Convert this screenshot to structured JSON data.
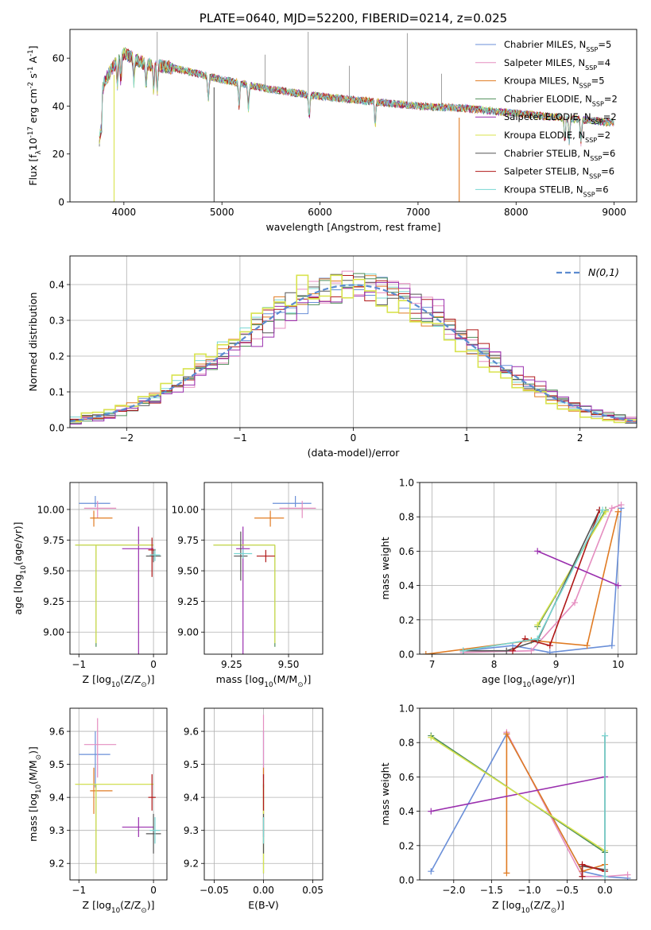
{
  "colors": [
    "#6a8fd8",
    "#e58ec0",
    "#e07b23",
    "#4f8f5a",
    "#9a2fae",
    "#d8e34e",
    "#555555",
    "#b01818",
    "#78d6d2"
  ],
  "chart_data": [
    {
      "type": "line",
      "id": "spectrum",
      "title": "PLATE=0640, MJD=52200, FIBERID=0214, z=0.025",
      "xlabel": "wavelength [Angstrom, rest frame]",
      "ylabel": "Flux [f$_\\lambda$10$^{-17}$ erg cm$^{-2}$ s$^{-1}$ A$^{-1}$]",
      "xlim": [
        3450,
        9230
      ],
      "ylim": [
        0,
        72
      ],
      "xticks": [
        4000,
        5000,
        6000,
        7000,
        8000,
        9000
      ],
      "yticks": [
        0,
        20,
        40,
        60
      ],
      "grid": false,
      "legend_position": "top-right",
      "series": [
        {
          "name": "Chabrier MILES, N$_{SSP}$=5"
        },
        {
          "name": "Salpeter MILES, N$_{SSP}$=4"
        },
        {
          "name": "Kroupa MILES, N$_{SSP}$=5"
        },
        {
          "name": "Chabrier ELODIE, N$_{SSP}$=2"
        },
        {
          "name": "Salpeter ELODIE, N$_{SSP}$=2"
        },
        {
          "name": "Kroupa ELODIE, N$_{SSP}$=2"
        },
        {
          "name": "Chabrier STELIB, N$_{SSP}$=6"
        },
        {
          "name": "Salpeter STELIB, N$_{SSP}$=6"
        },
        {
          "name": "Kroupa STELIB, N$_{SSP}$=6"
        }
      ],
      "continuum": {
        "x": [
          3750,
          3800,
          3900,
          4000,
          4100,
          4200,
          4300,
          4500,
          5000,
          5500,
          6000,
          6500,
          7000,
          7500,
          8000,
          8500,
          9000
        ],
        "y": [
          40,
          50,
          57,
          62,
          60,
          58,
          57,
          56,
          51,
          47,
          44,
          42,
          40,
          39,
          37,
          35,
          33
        ]
      },
      "absorption_lines": [
        3934,
        3969,
        4102,
        4227,
        4304,
        4341,
        4861,
        5175,
        5270,
        5890,
        6563,
        8498,
        8542,
        8662
      ],
      "drop_edges": {
        "Kroupa ELODIE": 3900,
        "Chabrier STELIB": 4920,
        "Kroupa MILES": 7420
      },
      "spikes": [
        4340,
        5440,
        5880,
        6300,
        6890,
        7240
      ]
    },
    {
      "type": "line",
      "id": "residuals",
      "title": "",
      "xlabel": "(data-model)/error",
      "ylabel": "Normed distribution",
      "xlim": [
        -2.5,
        2.5
      ],
      "ylim": [
        0,
        0.48
      ],
      "xticks": [
        -2,
        -1,
        0,
        1,
        2
      ],
      "yticks": [
        0.0,
        0.1,
        0.2,
        0.3,
        0.4
      ],
      "grid": true,
      "legend_position": "top-right",
      "reference": {
        "name": "$\\mathcal{N}(0,1)$",
        "mean": 0,
        "sd": 1
      },
      "bin_width": 0.1,
      "histogram_note": "nine step histograms (one per model) scattered around the normal density"
    },
    {
      "type": "scatter",
      "id": "age_vs_Z",
      "xlabel": "Z [log$_{10}$(Z/Z$_\\odot$)]",
      "ylabel": "age  [log$_{10}$(age/yr)]",
      "xlim": [
        -1.12,
        0.18
      ],
      "ylim": [
        8.82,
        10.22
      ],
      "xticks": [
        -1,
        0
      ],
      "yticks": [
        9.0,
        9.25,
        9.5,
        9.75,
        10.0
      ],
      "grid": true,
      "points": [
        {
          "series": 0,
          "x": -0.78,
          "y": 10.05,
          "xerr": [
            0.22,
            0.2
          ],
          "yerr": [
            0.03,
            0.06
          ]
        },
        {
          "series": 1,
          "x": -0.75,
          "y": 10.01,
          "xerr": [
            0.18,
            0.25
          ],
          "yerr": [
            0.08,
            0.06
          ]
        },
        {
          "series": 2,
          "x": -0.8,
          "y": 9.93,
          "xerr": [
            0.05,
            0.25
          ],
          "yerr": [
            0.07,
            0.06
          ]
        },
        {
          "series": 3,
          "x": -0.77,
          "y": 9.71,
          "xerr": [
            0.28,
            0.77
          ],
          "yerr": [
            0.83,
            0.0
          ]
        },
        {
          "series": 4,
          "x": -0.2,
          "y": 9.68,
          "xerr": [
            0.22,
            0.2
          ],
          "yerr": [
            0.86,
            0.18
          ]
        },
        {
          "series": 5,
          "x": -0.77,
          "y": 9.71,
          "xerr": [
            0.28,
            0.77
          ],
          "yerr": [
            0.8,
            0.0
          ]
        },
        {
          "series": 6,
          "x": 0.0,
          "y": 9.62,
          "xerr": [
            0.1,
            0.1
          ],
          "yerr": [
            0.05,
            0.05
          ]
        },
        {
          "series": 7,
          "x": -0.02,
          "y": 9.67,
          "xerr": [
            0.05,
            0.05
          ],
          "yerr": [
            0.22,
            0.1
          ]
        },
        {
          "series": 8,
          "x": 0.02,
          "y": 9.63,
          "xerr": [
            0.07,
            0.07
          ],
          "yerr": [
            0.05,
            0.05
          ]
        }
      ]
    },
    {
      "type": "scatter",
      "id": "age_vs_mass",
      "xlabel": "mass [log$_{10}$(M/M$_\\odot$)]",
      "ylabel": "",
      "xlim": [
        9.13,
        9.65
      ],
      "ylim": [
        8.82,
        10.22
      ],
      "xticks": [
        9.25,
        9.5
      ],
      "xtick_labels": [
        "9.25",
        "9.50"
      ],
      "yticks": [
        9.0,
        9.25,
        9.5,
        9.75,
        10.0
      ],
      "grid": true,
      "points": [
        {
          "series": 0,
          "x": 9.53,
          "y": 10.05,
          "xerr": [
            0.1,
            0.07
          ],
          "yerr": [
            0.03,
            0.06
          ]
        },
        {
          "series": 1,
          "x": 9.56,
          "y": 10.01,
          "xerr": [
            0.1,
            0.06
          ],
          "yerr": [
            0.08,
            0.06
          ]
        },
        {
          "series": 2,
          "x": 9.42,
          "y": 9.93,
          "xerr": [
            0.07,
            0.06
          ],
          "yerr": [
            0.07,
            0.06
          ]
        },
        {
          "series": 3,
          "x": 9.44,
          "y": 9.71,
          "xerr": [
            0.27,
            0.0
          ],
          "yerr": [
            0.83,
            0.0
          ]
        },
        {
          "series": 4,
          "x": 9.3,
          "y": 9.68,
          "xerr": [
            0.03,
            0.03
          ],
          "yerr": [
            0.86,
            0.18
          ]
        },
        {
          "series": 5,
          "x": 9.44,
          "y": 9.71,
          "xerr": [
            0.27,
            0.0
          ],
          "yerr": [
            0.8,
            0.0
          ]
        },
        {
          "series": 6,
          "x": 9.29,
          "y": 9.62,
          "xerr": [
            0.03,
            0.03
          ],
          "yerr": [
            0.2,
            0.2
          ]
        },
        {
          "series": 7,
          "x": 9.4,
          "y": 9.62,
          "xerr": [
            0.04,
            0.04
          ],
          "yerr": [
            0.05,
            0.05
          ]
        },
        {
          "series": 8,
          "x": 9.3,
          "y": 9.64,
          "xerr": [
            0.04,
            0.04
          ],
          "yerr": [
            0.04,
            0.04
          ]
        }
      ]
    },
    {
      "type": "line",
      "id": "weight_vs_age",
      "xlabel": "age  [log$_{10}$(age/yr)]",
      "ylabel": "mass weight",
      "xlim": [
        6.8,
        10.3
      ],
      "ylim": [
        0,
        1.0
      ],
      "xticks": [
        7,
        8,
        9,
        10
      ],
      "yticks": [
        0.0,
        0.2,
        0.4,
        0.6,
        0.8,
        1.0
      ],
      "grid": true,
      "series": [
        {
          "series": 0,
          "x": [
            7.5,
            8.3,
            8.9,
            9.9,
            10.05
          ],
          "y": [
            0.02,
            0.05,
            0.01,
            0.05,
            0.85
          ]
        },
        {
          "series": 1,
          "x": [
            7.5,
            8.6,
            9.3,
            9.9,
            10.05
          ],
          "y": [
            0.01,
            0.02,
            0.3,
            0.85,
            0.87
          ]
        },
        {
          "series": 2,
          "x": [
            6.9,
            8.6,
            9.5,
            10.0
          ],
          "y": [
            0.0,
            0.08,
            0.05,
            0.83
          ]
        },
        {
          "series": 3,
          "x": [
            8.7,
            9.8
          ],
          "y": [
            0.16,
            0.84
          ]
        },
        {
          "series": 4,
          "x": [
            8.7,
            10.0
          ],
          "y": [
            0.6,
            0.4
          ]
        },
        {
          "series": 5,
          "x": [
            8.7,
            9.8
          ],
          "y": [
            0.17,
            0.83
          ]
        },
        {
          "series": 6,
          "x": [
            7.5,
            8.2,
            8.7,
            9.7
          ],
          "y": [
            0.02,
            0.02,
            0.08,
            0.84
          ]
        },
        {
          "series": 7,
          "x": [
            8.3,
            8.5,
            8.9,
            9.7
          ],
          "y": [
            0.02,
            0.09,
            0.05,
            0.84
          ]
        },
        {
          "series": 8,
          "x": [
            7.5,
            8.7,
            9.75
          ],
          "y": [
            0.02,
            0.09,
            0.84
          ]
        }
      ]
    },
    {
      "type": "scatter",
      "id": "mass_vs_Z",
      "xlabel": "Z [log$_{10}$(Z/Z$_\\odot$)]",
      "ylabel": "mass [log$_{10}$(M/M$_\\odot$)]",
      "xlim": [
        -1.12,
        0.18
      ],
      "ylim": [
        9.15,
        9.67
      ],
      "xticks": [
        -1,
        0
      ],
      "yticks": [
        9.2,
        9.3,
        9.4,
        9.5,
        9.6
      ],
      "grid": true,
      "points": [
        {
          "series": 0,
          "x": -0.78,
          "y": 9.53,
          "xerr": [
            0.22,
            0.2
          ],
          "yerr": [
            0.1,
            0.07
          ]
        },
        {
          "series": 1,
          "x": -0.75,
          "y": 9.56,
          "xerr": [
            0.18,
            0.25
          ],
          "yerr": [
            0.1,
            0.08
          ]
        },
        {
          "series": 2,
          "x": -0.8,
          "y": 9.42,
          "xerr": [
            0.05,
            0.25
          ],
          "yerr": [
            0.07,
            0.07
          ]
        },
        {
          "series": 3,
          "x": -0.77,
          "y": 9.44,
          "xerr": [
            0.28,
            0.77
          ],
          "yerr": [
            0.27,
            0.0
          ]
        },
        {
          "series": 4,
          "x": -0.2,
          "y": 9.31,
          "xerr": [
            0.22,
            0.2
          ],
          "yerr": [
            0.03,
            0.03
          ]
        },
        {
          "series": 5,
          "x": -0.77,
          "y": 9.44,
          "xerr": [
            0.28,
            0.77
          ],
          "yerr": [
            0.27,
            0.0
          ]
        },
        {
          "series": 6,
          "x": 0.0,
          "y": 9.29,
          "xerr": [
            0.1,
            0.1
          ],
          "yerr": [
            0.06,
            0.06
          ]
        },
        {
          "series": 7,
          "x": -0.02,
          "y": 9.4,
          "xerr": [
            0.05,
            0.05
          ],
          "yerr": [
            0.04,
            0.07
          ]
        },
        {
          "series": 8,
          "x": 0.02,
          "y": 9.3,
          "xerr": [
            0.07,
            0.07
          ],
          "yerr": [
            0.04,
            0.04
          ]
        }
      ]
    },
    {
      "type": "scatter",
      "id": "mass_vs_ebv",
      "xlabel": "E(B-V)",
      "ylabel": "",
      "xlim": [
        -0.06,
        0.06
      ],
      "ylim": [
        9.15,
        9.67
      ],
      "xticks": [
        -0.05,
        0.0,
        0.05
      ],
      "xtick_labels": [
        "−0.05",
        "0.00",
        "0.05"
      ],
      "yticks": [
        9.2,
        9.3,
        9.4,
        9.5,
        9.6
      ],
      "grid": true,
      "points": [
        {
          "series": 0,
          "x": 0.0,
          "y": 9.53,
          "xerr": [
            0,
            0
          ],
          "yerr": [
            0.1,
            0.07
          ]
        },
        {
          "series": 1,
          "x": 0.0,
          "y": 9.56,
          "xerr": [
            0,
            0
          ],
          "yerr": [
            0.1,
            0.09
          ]
        },
        {
          "series": 2,
          "x": 0.0,
          "y": 9.42,
          "xerr": [
            0,
            0
          ],
          "yerr": [
            0.07,
            0.07
          ]
        },
        {
          "series": 3,
          "x": 0.0,
          "y": 9.44,
          "xerr": [
            0,
            0
          ],
          "yerr": [
            0.27,
            0.0
          ]
        },
        {
          "series": 4,
          "x": 0.0,
          "y": 9.31,
          "xerr": [
            0,
            0
          ],
          "yerr": [
            0.03,
            0.03
          ]
        },
        {
          "series": 5,
          "x": 0.0,
          "y": 9.44,
          "xerr": [
            0,
            0
          ],
          "yerr": [
            0.27,
            0.0
          ]
        },
        {
          "series": 6,
          "x": 0.0,
          "y": 9.29,
          "xerr": [
            0,
            0
          ],
          "yerr": [
            0.06,
            0.06
          ]
        },
        {
          "series": 7,
          "x": 0.0,
          "y": 9.4,
          "xerr": [
            0,
            0
          ],
          "yerr": [
            0.04,
            0.07
          ]
        },
        {
          "series": 8,
          "x": 0.0,
          "y": 9.3,
          "xerr": [
            0,
            0
          ],
          "yerr": [
            0.04,
            0.04
          ]
        }
      ]
    },
    {
      "type": "line",
      "id": "weight_vs_Z",
      "xlabel": "Z [log$_{10}$(Z/Z$_\\odot$)]",
      "ylabel": "mass weight",
      "xlim": [
        -2.45,
        0.42
      ],
      "ylim": [
        0,
        1.0
      ],
      "xticks": [
        -2.0,
        -1.5,
        -1.0,
        -0.5,
        0.0
      ],
      "xtick_labels": [
        "−2.0",
        "−1.5",
        "−1.0",
        "−0.5",
        "0.0"
      ],
      "yticks": [
        0.0,
        0.2,
        0.4,
        0.6,
        0.8,
        1.0
      ],
      "grid": true,
      "series": [
        {
          "series": 0,
          "x": [
            -2.3,
            -1.3,
            -0.3,
            0.0,
            0.3
          ],
          "y": [
            0.05,
            0.85,
            0.05,
            0.02,
            0.01
          ]
        },
        {
          "series": 1,
          "x": [
            -1.3,
            -0.3,
            0.0,
            0.3
          ],
          "y": [
            0.86,
            0.02,
            0.02,
            0.03
          ]
        },
        {
          "series": 2,
          "x": [
            -1.3,
            -1.3,
            -0.3,
            0.0
          ],
          "y": [
            0.04,
            0.85,
            0.05,
            0.09
          ]
        },
        {
          "series": 3,
          "x": [
            -2.3,
            0.0
          ],
          "y": [
            0.84,
            0.16
          ]
        },
        {
          "series": 4,
          "x": [
            -2.3,
            0.0
          ],
          "y": [
            0.4,
            0.6
          ]
        },
        {
          "series": 5,
          "x": [
            -2.3,
            0.0
          ],
          "y": [
            0.83,
            0.17
          ]
        },
        {
          "series": 6,
          "x": [
            -0.3,
            -0.3,
            0.0,
            0.0
          ],
          "y": [
            0.02,
            0.08,
            0.06,
            0.84
          ]
        },
        {
          "series": 7,
          "x": [
            -0.3,
            -0.3,
            0.0
          ],
          "y": [
            0.02,
            0.09,
            0.05
          ]
        },
        {
          "series": 8,
          "x": [
            0.0,
            0.0
          ],
          "y": [
            0.02,
            0.84
          ]
        }
      ]
    }
  ]
}
